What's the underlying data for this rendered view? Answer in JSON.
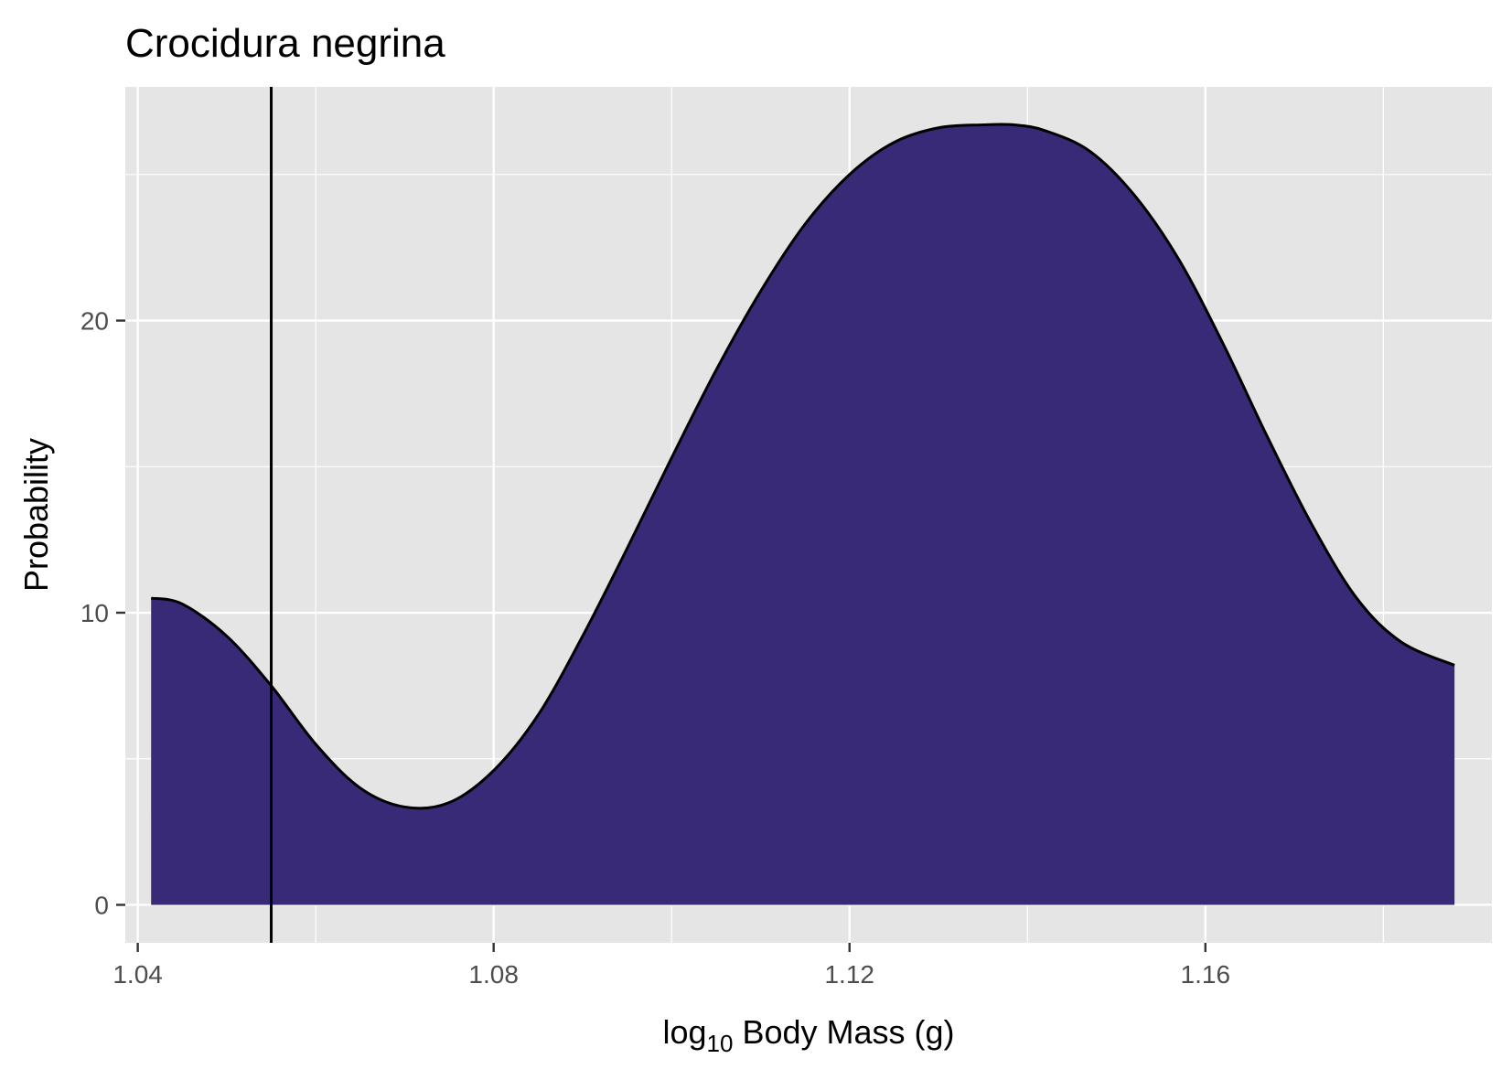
{
  "chart_data": {
    "type": "area",
    "title": "Crocidura negrina",
    "xlabel_main": "log",
    "xlabel_sub": "10",
    "xlabel_rest": " Body Mass (g)",
    "ylabel": "Probability",
    "xlim": [
      1.0386,
      1.1922
    ],
    "ylim": [
      -1.3,
      28.0
    ],
    "x_ticks": [
      1.04,
      1.08,
      1.12,
      1.16
    ],
    "x_tick_labels": [
      "1.04",
      "1.08",
      "1.12",
      "1.16"
    ],
    "y_ticks": [
      0,
      10,
      20
    ],
    "y_tick_labels": [
      "0",
      "10",
      "20"
    ],
    "x_minor_breaks": [
      1.06,
      1.1,
      1.14,
      1.18
    ],
    "y_minor_breaks": [
      5,
      15,
      25
    ],
    "grid": true,
    "fill_color": "#382a77",
    "line_color": "#000000",
    "panel_background": "#e5e5e5",
    "vline_x": 1.055,
    "density": {
      "x": [
        1.0415,
        1.045,
        1.05,
        1.055,
        1.06,
        1.065,
        1.07,
        1.075,
        1.08,
        1.085,
        1.09,
        1.095,
        1.1,
        1.105,
        1.11,
        1.115,
        1.12,
        1.125,
        1.13,
        1.135,
        1.1385,
        1.142,
        1.147,
        1.152,
        1.157,
        1.162,
        1.167,
        1.172,
        1.177,
        1.182,
        1.188
      ],
      "y": [
        10.5,
        10.3,
        9.2,
        7.5,
        5.5,
        4.0,
        3.35,
        3.5,
        4.6,
        6.5,
        9.2,
        12.2,
        15.3,
        18.3,
        21.0,
        23.3,
        25.0,
        26.1,
        26.6,
        26.7,
        26.7,
        26.5,
        25.8,
        24.3,
        22.1,
        19.2,
        16.0,
        13.0,
        10.5,
        9.0,
        8.2
      ]
    }
  }
}
